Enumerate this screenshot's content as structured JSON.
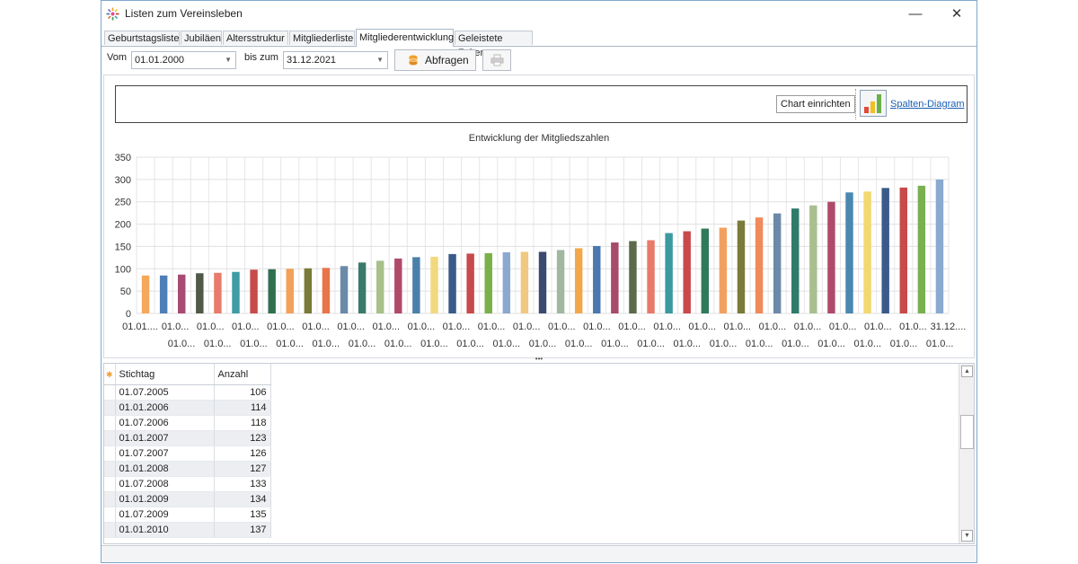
{
  "window": {
    "title": "Listen zum Vereinsleben",
    "minimize_glyph": "—",
    "close_glyph": "✕"
  },
  "tabs": [
    {
      "label": "Geburtstagsliste"
    },
    {
      "label": "Jubiläen"
    },
    {
      "label": "Altersstruktur"
    },
    {
      "label": "Mitgliederliste"
    },
    {
      "label": "Mitgliederentwicklung",
      "active": true
    },
    {
      "label": "Geleistete Zeiten"
    }
  ],
  "toolbar": {
    "from_label": "Vom",
    "from_value": "01.01.2000",
    "to_label": "bis zum",
    "to_value": "31.12.2021",
    "query_button": "Abfragen",
    "print_icon": "printer-icon",
    "query_icon": "database-icon"
  },
  "chart_header": {
    "setup_button": "Chart einrichten",
    "diagram_link": "Spalten-Diagram",
    "diagram_icon": "bar-chart-icon"
  },
  "chart_data": {
    "type": "bar",
    "title": "Entwicklung der Mitgliedszahlen",
    "xlabel": "",
    "ylabel": "",
    "ylim": [
      0,
      350
    ],
    "yticks": [
      0,
      50,
      100,
      150,
      200,
      250,
      300,
      350
    ],
    "grid": true,
    "x_labels_top": [
      "01.01....",
      "01.0...",
      "01.0...",
      "01.0...",
      "01.0...",
      "01.0...",
      "01.0...",
      "01.0...",
      "01.0...",
      "01.0...",
      "01.0...",
      "01.0...",
      "01.0...",
      "01.0...",
      "01.0...",
      "01.0...",
      "01.0...",
      "01.0...",
      "01.0...",
      "01.0...",
      "01.0...",
      "01.0...",
      "01.0...",
      "31.12...."
    ],
    "x_labels_bottom": [
      "01.0...",
      "01.0...",
      "01.0...",
      "01.0...",
      "01.0...",
      "01.0...",
      "01.0...",
      "01.0...",
      "01.0...",
      "01.0...",
      "01.0...",
      "01.0...",
      "01.0...",
      "01.0...",
      "01.0...",
      "01.0...",
      "01.0...",
      "01.0...",
      "01.0...",
      "01.0...",
      "01.0...",
      "01.0..."
    ],
    "values": [
      85,
      85,
      87,
      90,
      91,
      93,
      98,
      99,
      100,
      101,
      102,
      106,
      114,
      118,
      123,
      126,
      127,
      133,
      134,
      135,
      137,
      138,
      138,
      142,
      146,
      151,
      159,
      162,
      164,
      180,
      184,
      190,
      192,
      208,
      215,
      224,
      235,
      242,
      250,
      271,
      273,
      281,
      282,
      286,
      300
    ],
    "colors": [
      "#f5a85a",
      "#4f7fb8",
      "#a74a74",
      "#4e5a47",
      "#e87c6c",
      "#3f9ca3",
      "#c84a4a",
      "#2f6f4f",
      "#f2a05a",
      "#7a7a3a",
      "#e8744a",
      "#6a8aa8",
      "#3a7a6a",
      "#a8c08a",
      "#b04a6a",
      "#4a80a8",
      "#f2d880",
      "#3a5a8a",
      "#c84a4a",
      "#7ab04a",
      "#8aa8d0",
      "#f0c880",
      "#3a4a70",
      "#a0b8a0",
      "#f2a84a",
      "#4a78b0",
      "#a84a6a",
      "#5a6a4a",
      "#e87a6a",
      "#3a9aa0",
      "#c84a4a",
      "#2f7a5a",
      "#f2a060",
      "#7a7a3a",
      "#f08a5a",
      "#6a8aa8",
      "#2f7a6a",
      "#a8c090",
      "#b04a6a",
      "#4a88b0",
      "#f2d870",
      "#3a5a8a",
      "#c84a4a",
      "#7ab050",
      "#8aaad0"
    ]
  },
  "table": {
    "headers": [
      "Stichtag",
      "Anzahl"
    ],
    "rows": [
      {
        "date": "01.07.2005",
        "count": "106"
      },
      {
        "date": "01.01.2006",
        "count": "114"
      },
      {
        "date": "01.07.2006",
        "count": "118"
      },
      {
        "date": "01.01.2007",
        "count": "123"
      },
      {
        "date": "01.07.2007",
        "count": "126"
      },
      {
        "date": "01.01.2008",
        "count": "127"
      },
      {
        "date": "01.07.2008",
        "count": "133"
      },
      {
        "date": "01.01.2009",
        "count": "134"
      },
      {
        "date": "01.07.2009",
        "count": "135"
      },
      {
        "date": "01.01.2010",
        "count": "137"
      }
    ]
  },
  "scroll": {
    "up": "▲",
    "down": "▼"
  },
  "splitter_glyph": "•••"
}
